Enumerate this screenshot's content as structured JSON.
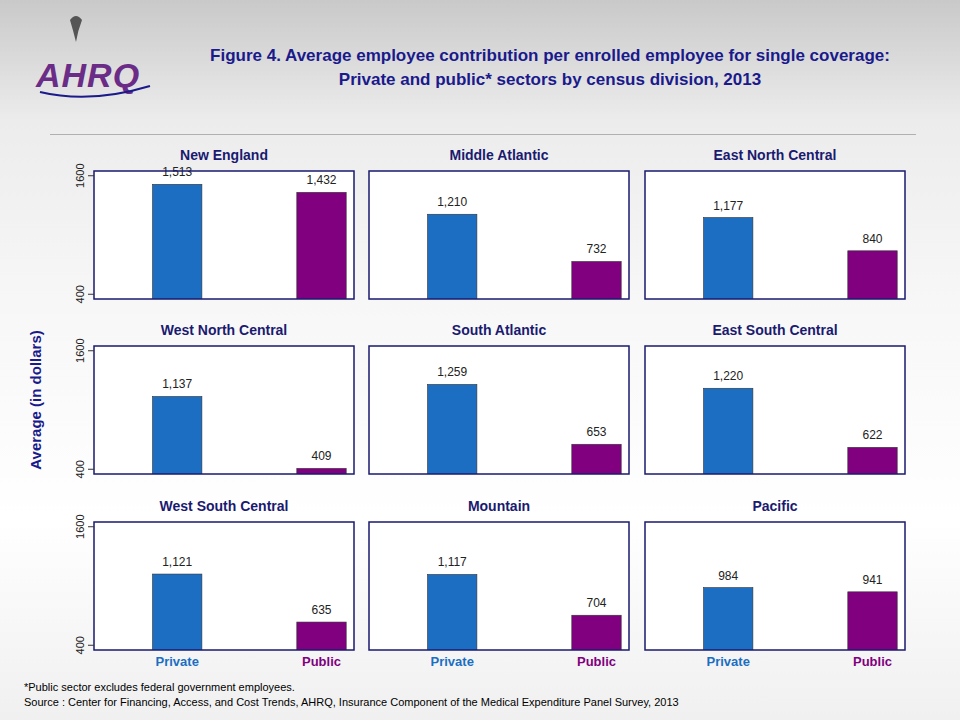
{
  "header": {
    "logo": "AHRQ",
    "title": "Figure 4. Average employee contribution per enrolled employee for single coverage: Private and public* sectors by census division, 2013"
  },
  "y_label": "Average (in dollars)",
  "footer": {
    "note": "*Public sector excludes federal government employees.",
    "source": "Source : Center for Financing, Access, and Cost Trends, AHRQ, Insurance Component of the Medical Expenditure Panel Survey, 2013"
  },
  "chart_data": [
    {
      "type": "bar",
      "title": "New England",
      "categories": [
        "Private",
        "Public"
      ],
      "values": [
        1513,
        1432
      ],
      "value_labels": [
        "1,513",
        "1,432"
      ],
      "colors": [
        "#1b6ec2",
        "#800080"
      ],
      "ylim": [
        352,
        1648
      ],
      "yticks": [
        400,
        1600
      ],
      "data_labels": true,
      "tick_labels": "y"
    },
    {
      "type": "bar",
      "title": "Middle Atlantic",
      "categories": [
        "Private",
        "Public"
      ],
      "values": [
        1210,
        732
      ],
      "value_labels": [
        "1,210",
        "732"
      ],
      "colors": [
        "#1b6ec2",
        "#800080"
      ],
      "ylim": [
        352,
        1648
      ],
      "data_labels": true,
      "tick_labels": false
    },
    {
      "type": "bar",
      "title": "East North Central",
      "categories": [
        "Private",
        "Public"
      ],
      "values": [
        1177,
        840
      ],
      "value_labels": [
        "1,177",
        "840"
      ],
      "colors": [
        "#1b6ec2",
        "#800080"
      ],
      "ylim": [
        352,
        1648
      ],
      "data_labels": true,
      "tick_labels": false
    },
    {
      "type": "bar",
      "title": "West North Central",
      "categories": [
        "Private",
        "Public"
      ],
      "values": [
        1137,
        409
      ],
      "value_labels": [
        "1,137",
        "409"
      ],
      "colors": [
        "#1b6ec2",
        "#800080"
      ],
      "ylim": [
        352,
        1648
      ],
      "yticks": [
        400,
        1600
      ],
      "data_labels": true,
      "tick_labels": "y"
    },
    {
      "type": "bar",
      "title": "South Atlantic",
      "categories": [
        "Private",
        "Public"
      ],
      "values": [
        1259,
        653
      ],
      "value_labels": [
        "1,259",
        "653"
      ],
      "colors": [
        "#1b6ec2",
        "#800080"
      ],
      "ylim": [
        352,
        1648
      ],
      "data_labels": true,
      "tick_labels": false
    },
    {
      "type": "bar",
      "title": "East South Central",
      "categories": [
        "Private",
        "Public"
      ],
      "values": [
        1220,
        622
      ],
      "value_labels": [
        "1,220",
        "622"
      ],
      "colors": [
        "#1b6ec2",
        "#800080"
      ],
      "ylim": [
        352,
        1648
      ],
      "data_labels": true,
      "tick_labels": false
    },
    {
      "type": "bar",
      "title": "West South Central",
      "categories": [
        "Private",
        "Public"
      ],
      "values": [
        1121,
        635
      ],
      "value_labels": [
        "1,121",
        "635"
      ],
      "colors": [
        "#1b6ec2",
        "#800080"
      ],
      "ylim": [
        352,
        1648
      ],
      "yticks": [
        400,
        1600
      ],
      "data_labels": true
    },
    {
      "type": "bar",
      "title": "Mountain",
      "categories": [
        "Private",
        "Public"
      ],
      "values": [
        1117,
        704
      ],
      "value_labels": [
        "1,117",
        "704"
      ],
      "colors": [
        "#1b6ec2",
        "#800080"
      ],
      "ylim": [
        352,
        1648
      ],
      "data_labels": true,
      "tick_labels": "x"
    },
    {
      "type": "bar",
      "title": "Pacific",
      "categories": [
        "Private",
        "Public"
      ],
      "values": [
        984,
        941
      ],
      "value_labels": [
        "984",
        "941"
      ],
      "colors": [
        "#1b6ec2",
        "#800080"
      ],
      "ylim": [
        352,
        1648
      ],
      "data_labels": true,
      "tick_labels": "x"
    }
  ]
}
